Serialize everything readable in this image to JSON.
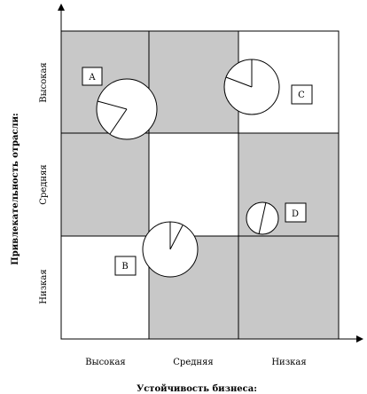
{
  "diagram": {
    "x_axis_title": "Устойчивость бизнеса:",
    "y_axis_title": "Привлекательность отрасли:",
    "x_levels": [
      "Высокая",
      "Средняя",
      "Низкая"
    ],
    "y_levels": [
      "Высокая",
      "Средняя",
      "Низкая"
    ],
    "cell_colors": {
      "shaded": "#c8c8c8",
      "plain": "#ffffff"
    },
    "cells": [
      {
        "col": 0,
        "row": 0,
        "shade": "shaded"
      },
      {
        "col": 1,
        "row": 0,
        "shade": "shaded"
      },
      {
        "col": 2,
        "row": 0,
        "shade": "plain"
      },
      {
        "col": 0,
        "row": 1,
        "shade": "shaded"
      },
      {
        "col": 1,
        "row": 1,
        "shade": "plain"
      },
      {
        "col": 2,
        "row": 1,
        "shade": "shaded"
      },
      {
        "col": 0,
        "row": 2,
        "shade": "plain"
      },
      {
        "col": 1,
        "row": 2,
        "shade": "shaded"
      },
      {
        "col": 2,
        "row": 2,
        "shade": "shaded"
      }
    ],
    "businesses": [
      {
        "label": "A"
      },
      {
        "label": "B"
      },
      {
        "label": "C"
      },
      {
        "label": "D"
      }
    ]
  }
}
